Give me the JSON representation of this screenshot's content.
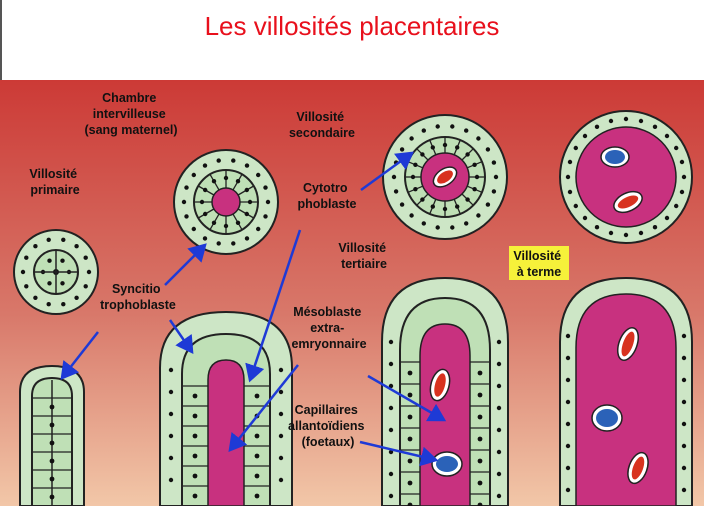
{
  "slide": {
    "title": "Les villosités placentaires"
  },
  "colors": {
    "title": "#e8101c",
    "background_top": "#cc3a36",
    "background_bottom": "#f2c7a8",
    "trophoblast": "#cde6c6",
    "cells": "#bfe0b6",
    "mesoblast": "#c8317f",
    "capillary_red": "#d8321f",
    "capillary_blue": "#2b62b8",
    "arrow": "#1e3ad6",
    "highlight": "#f6f13a"
  },
  "labels": {
    "chambre": [
      "Chambre",
      "intervilleuse",
      "(sang maternel)"
    ],
    "primaire": [
      "Villosité",
      "primaire"
    ],
    "secondaire": [
      "Villosité",
      "secondaire"
    ],
    "cytotro": [
      "Cytotro",
      "phoblaste"
    ],
    "tertiaire": [
      "Villosité",
      "tertiaire"
    ],
    "terme": [
      "Villosité",
      "à terme"
    ],
    "syncitio": [
      "Syncitio",
      "trophoblaste"
    ],
    "mesoblaste": [
      "Mésoblaste",
      "extra-",
      "emryonnaire"
    ],
    "capillaires": [
      "Capillaires",
      "allantoïdiens",
      "(foetaux)"
    ]
  }
}
